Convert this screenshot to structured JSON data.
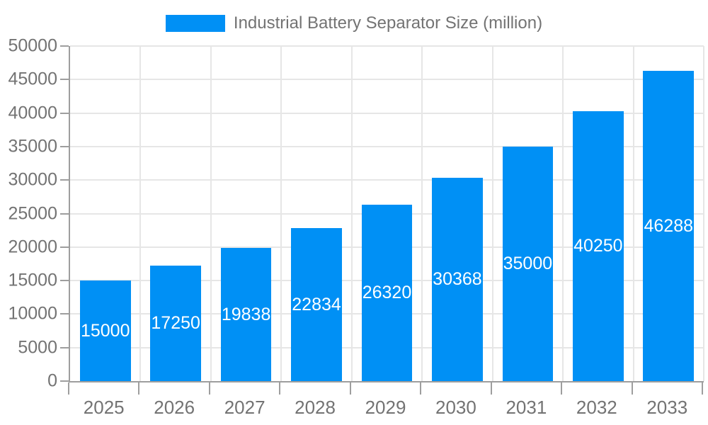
{
  "colors": {
    "background": "#ffffff",
    "bar": "#0090F5",
    "grid": "#e6e6e6",
    "axis": "#9e9e9e",
    "text": "#737373",
    "bar_label": "#ffffff"
  },
  "legend": {
    "label": "Industrial Battery Separator Size (million)"
  },
  "chart_data": {
    "type": "bar",
    "title": "Industrial Battery Separator Size (million)",
    "categories": [
      "2025",
      "2026",
      "2027",
      "2028",
      "2029",
      "2030",
      "2031",
      "2032",
      "2033"
    ],
    "values": [
      15000,
      17250,
      19838,
      22834,
      26320,
      30368,
      35000,
      40250,
      46288
    ],
    "xlabel": "",
    "ylabel": "",
    "ylim": [
      0,
      50000
    ],
    "ytick_step": 5000,
    "yticks": [
      0,
      5000,
      10000,
      15000,
      20000,
      25000,
      30000,
      35000,
      40000,
      45000,
      50000
    ],
    "grid": true,
    "legend_position": "top",
    "bar_labels": "centered-white-inside"
  }
}
